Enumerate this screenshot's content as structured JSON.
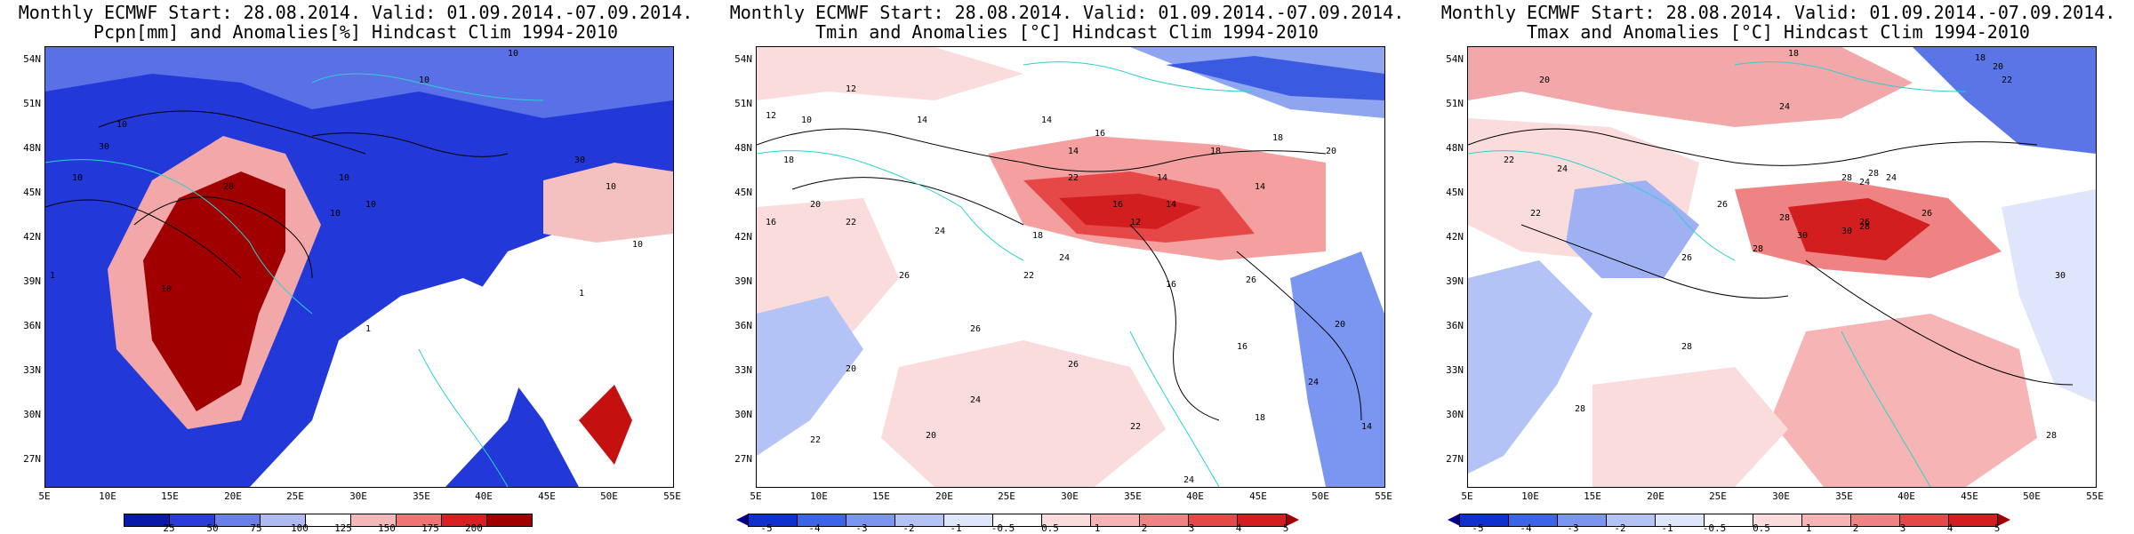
{
  "panels": [
    {
      "title_line1": "Monthly ECMWF Start: 28.08.2014. Valid: 01.09.2014.-07.09.2014.",
      "title_line2": "Pcpn[mm] and Anomalies[%] Hindcast Clim 1994-2010",
      "colorbar": {
        "colors": [
          "#0a1aa8",
          "#2a3ddb",
          "#6a7fe8",
          "#aebaf2",
          "#ffffff",
          "#f5b8b8",
          "#ef7474",
          "#d92020",
          "#a00000"
        ],
        "labels": [
          "25",
          "50",
          "75",
          "100",
          "125",
          "150",
          "175",
          "200"
        ],
        "end_triangles": false
      },
      "contour_labels": [
        "10",
        "10",
        "10",
        "10",
        "30",
        "20",
        "10",
        "10",
        "30",
        "10",
        "10",
        "1",
        "1",
        "1",
        "10",
        "10"
      ]
    },
    {
      "title_line1": "Monthly ECMWF Start: 28.08.2014. Valid: 01.09.2014.-07.09.2014.",
      "title_line2": "Tmin and Anomalies [°C] Hindcast Clim 1994-2010",
      "colorbar": {
        "colors": [
          "#00008b",
          "#1030d0",
          "#3c64e6",
          "#7a96f0",
          "#b4c3f6",
          "#dfe5fb",
          "#ffffff",
          "#fbdcdc",
          "#f6b4b4",
          "#ef8282",
          "#e64848",
          "#d21e1e",
          "#a00000"
        ],
        "labels": [
          "-5",
          "-4",
          "-3",
          "-2",
          "-1",
          "-0.5",
          "0.5",
          "1",
          "2",
          "3",
          "4",
          "5"
        ],
        "end_triangles": true
      },
      "contour_labels": [
        "12",
        "12",
        "10",
        "14",
        "14",
        "14",
        "16",
        "18",
        "18",
        "20",
        "22",
        "14",
        "16",
        "12",
        "14",
        "18",
        "24",
        "26",
        "22",
        "20",
        "18",
        "16",
        "24",
        "26",
        "20",
        "22",
        "24",
        "26",
        "20",
        "22",
        "24",
        "16",
        "14",
        "18",
        "20",
        "24",
        "26",
        "22",
        "16",
        "14"
      ]
    },
    {
      "title_line1": "Monthly ECMWF Start: 28.08.2014. Valid: 01.09.2014.-07.09.2014.",
      "title_line2": "Tmax and Anomalies [°C] Hindcast Clim 1994-2010",
      "colorbar": {
        "colors": [
          "#00008b",
          "#1030d0",
          "#3c64e6",
          "#7a96f0",
          "#b4c3f6",
          "#dfe5fb",
          "#ffffff",
          "#fbdcdc",
          "#f6b4b4",
          "#ef8282",
          "#e64848",
          "#d21e1e",
          "#a00000"
        ],
        "labels": [
          "-5",
          "-4",
          "-3",
          "-2",
          "-1",
          "-0.5",
          "0.5",
          "1",
          "2",
          "3",
          "4",
          "5"
        ],
        "end_triangles": true
      },
      "contour_labels": [
        "18",
        "18",
        "20",
        "20",
        "22",
        "24",
        "22",
        "24",
        "26",
        "28",
        "22",
        "24",
        "28",
        "24",
        "26",
        "28",
        "30",
        "28",
        "26",
        "30",
        "28",
        "26",
        "30",
        "28",
        "28",
        "28"
      ]
    }
  ],
  "axes": {
    "lat_labels": [
      "54N",
      "51N",
      "48N",
      "45N",
      "42N",
      "39N",
      "36N",
      "33N",
      "30N",
      "27N"
    ],
    "lon_labels": [
      "5E",
      "10E",
      "15E",
      "20E",
      "25E",
      "30E",
      "35E",
      "40E",
      "45E",
      "50E",
      "55E"
    ]
  }
}
